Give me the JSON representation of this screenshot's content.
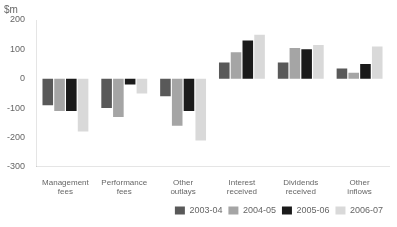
{
  "chart_data": {
    "type": "bar",
    "title": "$m",
    "categories": [
      "Management\nfees",
      "Performance\nfees",
      "Other\noutlays",
      "Interest\nreceived",
      "Dividends\nreceived",
      "Other\ninflows"
    ],
    "series": [
      {
        "name": "2003-04",
        "color": "#595959",
        "values": [
          -90,
          -100,
          -60,
          55,
          55,
          35
        ]
      },
      {
        "name": "2004-05",
        "color": "#a5a5a5",
        "values": [
          -110,
          -130,
          -160,
          90,
          105,
          20
        ]
      },
      {
        "name": "2005-06",
        "color": "#1a1a1a",
        "values": [
          -110,
          -20,
          -110,
          130,
          100,
          50
        ]
      },
      {
        "name": "2006-07",
        "color": "#d9d9d9",
        "values": [
          -180,
          -50,
          -210,
          150,
          115,
          110
        ]
      }
    ],
    "ylim": [
      -300,
      200
    ],
    "yticks": [
      -300,
      -200,
      -100,
      0,
      100,
      200
    ],
    "grid": false,
    "legend": "lower right"
  }
}
